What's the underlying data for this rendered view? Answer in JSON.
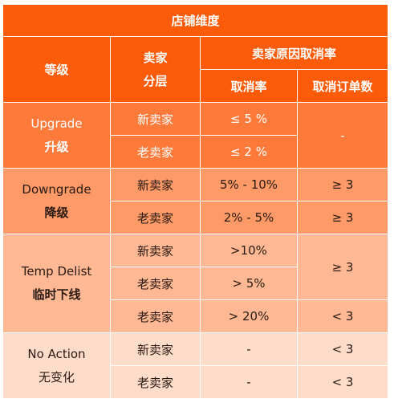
{
  "header": {
    "title": "店铺维度",
    "level_col": "等级",
    "seller_col_line1": "卖家",
    "seller_col_line2": "分层",
    "reason_group": "卖家原因取消率",
    "rate_col": "取消率",
    "count_col": "取消订单数"
  },
  "groups": [
    {
      "name_en": "Upgrade",
      "name_cn": "升级",
      "rows": [
        {
          "seller": "新卖家",
          "rate": "≤ 5 %"
        },
        {
          "seller": "老卖家",
          "rate": "≤ 2 %"
        }
      ],
      "count": "-"
    },
    {
      "name_en": "Downgrade",
      "name_cn": "降级",
      "rows": [
        {
          "seller": "新卖家",
          "rate": "5% - 10%",
          "count": "≥ 3"
        },
        {
          "seller": "老卖家",
          "rate": "2% - 5%",
          "count": "≥ 3"
        }
      ]
    },
    {
      "name_en": "Temp Delist",
      "name_cn": "临时下线",
      "rows": [
        {
          "seller": "新卖家",
          "rate": ">10%"
        },
        {
          "seller": "老卖家",
          "rate": "> 5%"
        },
        {
          "seller": "老卖家",
          "rate": "> 20%",
          "count": "< 3"
        }
      ],
      "count_merged": "≥ 3"
    },
    {
      "name_en": "No Action",
      "name_cn": "无变化",
      "rows": [
        {
          "seller": "新卖家",
          "rate": "-",
          "count": "< 3"
        },
        {
          "seller": "老卖家",
          "rate": "-",
          "count": "< 3"
        }
      ]
    }
  ],
  "colors": {
    "header": "#fc5b0a",
    "upgrade": "#fd7a3a",
    "downgrade": "#fd9a67",
    "temp_delist": "#feb894",
    "no_action": "#fddcca"
  }
}
